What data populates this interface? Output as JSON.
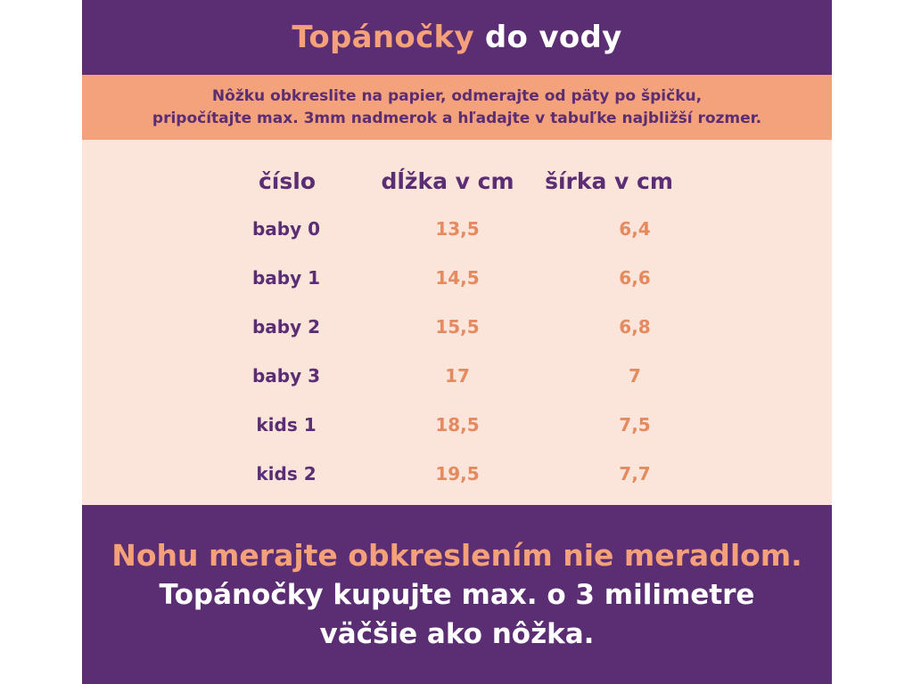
{
  "title": {
    "accent": "Topánočky",
    "rest": "do vody"
  },
  "instruction": {
    "line1": "Nôžku obkreslite na papier, odmerajte od päty po špičku,",
    "line2": "pripočítajte max. 3mm nadmerok a hľadajte v tabuľke najbližší rozmer."
  },
  "table": {
    "headers": [
      "číslo",
      "dĺžka v cm",
      "šírka v cm"
    ],
    "rows": [
      {
        "size": "baby 0",
        "length": "13,5",
        "width": "6,4"
      },
      {
        "size": "baby 1",
        "length": "14,5",
        "width": "6,6"
      },
      {
        "size": "baby 2",
        "length": "15,5",
        "width": "6,8"
      },
      {
        "size": "baby 3",
        "length": "17",
        "width": "7"
      },
      {
        "size": "kids 1",
        "length": "18,5",
        "width": "7,5"
      },
      {
        "size": "kids 2",
        "length": "19,5",
        "width": "7,7"
      }
    ]
  },
  "footer": {
    "line1": "Nohu merajte obkreslením nie meradlom.",
    "line2": "Topánočky kupujte max. o 3 milimetre",
    "line3": "väčšie ako nôžka."
  },
  "colors": {
    "purple": "#5b2d73",
    "salmon": "#f4a27c",
    "pale_peach": "#fbe4da",
    "value_orange": "#e58a5e"
  }
}
